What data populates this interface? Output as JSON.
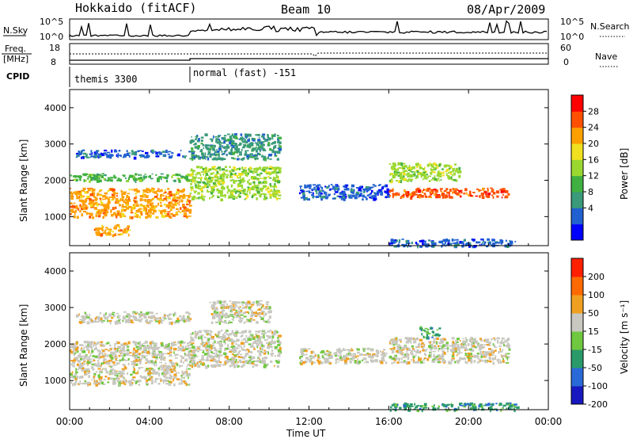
{
  "header": {
    "station": "Hokkaido (fitACF)",
    "beam": "Beam 10",
    "date": "08/Apr/2009"
  },
  "noise_panel": {
    "left_label": "N.Sky",
    "right_label": "N.Search",
    "left_ticks": [
      "10^5",
      "10^0"
    ],
    "right_ticks": [
      "10^5",
      "10^0"
    ]
  },
  "freq_panel": {
    "left_label_line1": "Freq.",
    "left_label_line2": "[MHz]",
    "right_label": "Nave",
    "left_ticks": [
      "18",
      "8"
    ],
    "right_ticks": [
      "60",
      "0"
    ]
  },
  "cpid_panel": {
    "label": "CPID",
    "segments": [
      {
        "text": "themis 3300",
        "start_hour": 0,
        "end_hour": 6.0
      },
      {
        "text": "normal (fast) -151",
        "start_hour": 6.0,
        "end_hour": 24
      }
    ]
  },
  "power_panel": {
    "ylabel": "Slant Range [km]",
    "yticks": [
      "4000",
      "3000",
      "2000",
      "1000"
    ],
    "colorbar_label": "Power [dB]",
    "colorbar_ticks": [
      "28",
      "24",
      "20",
      "16",
      "12",
      "8",
      "4"
    ],
    "colors": [
      "#0000ff",
      "#2060d0",
      "#3a9a7a",
      "#40b040",
      "#9ad830",
      "#f0e020",
      "#ffa000",
      "#ff5000",
      "#ff0000"
    ]
  },
  "velocity_panel": {
    "ylabel": "Slant Range [km]",
    "yticks": [
      "4000",
      "3000",
      "2000",
      "1000"
    ],
    "colorbar_label": "Velocity [m s⁻¹]",
    "colorbar_ticks": [
      "200",
      "100",
      "50",
      "15",
      "-15",
      "-50",
      "-100",
      "-200"
    ],
    "colors": [
      "#1818c0",
      "#2a6ad8",
      "#2a9a6a",
      "#70c840",
      "#c8c8c0",
      "#f0a020",
      "#ff6a00",
      "#ff2000"
    ]
  },
  "xaxis": {
    "label": "Time UT",
    "ticks": [
      "00:00",
      "04:00",
      "08:00",
      "12:00",
      "16:00",
      "20:00",
      "00:00"
    ]
  },
  "chart_data": [
    {
      "type": "heatmap",
      "title": "Power",
      "xlabel": "Time UT",
      "ylabel": "Slant Range [km]",
      "xlim": [
        0,
        24
      ],
      "ylim": [
        200,
        4500
      ],
      "colorbar": {
        "label": "Power [dB]",
        "range": [
          0,
          30
        ]
      },
      "bands": [
        {
          "start_hour": 0.0,
          "end_hour": 6.0,
          "range_km": [
            1000,
            1800
          ],
          "power_db": 22
        },
        {
          "start_hour": 0.0,
          "end_hour": 6.0,
          "range_km": [
            2000,
            2200
          ],
          "power_db": 12
        },
        {
          "start_hour": 0.3,
          "end_hour": 6.0,
          "range_km": [
            2650,
            2850
          ],
          "power_db": 6
        },
        {
          "start_hour": 1.2,
          "end_hour": 3.0,
          "range_km": [
            500,
            800
          ],
          "power_db": 20
        },
        {
          "start_hour": 6.0,
          "end_hour": 10.5,
          "range_km": [
            1500,
            2400
          ],
          "power_db": 16
        },
        {
          "start_hour": 6.0,
          "end_hour": 10.5,
          "range_km": [
            2600,
            3300
          ],
          "power_db": 8
        },
        {
          "start_hour": 11.5,
          "end_hour": 16.0,
          "range_km": [
            1500,
            1900
          ],
          "power_db": 6
        },
        {
          "start_hour": 16.0,
          "end_hour": 22.0,
          "range_km": [
            1550,
            1800
          ],
          "power_db": 26
        },
        {
          "start_hour": 16.0,
          "end_hour": 19.5,
          "range_km": [
            2000,
            2500
          ],
          "power_db": 14
        },
        {
          "start_hour": 16.0,
          "end_hour": 22.5,
          "range_km": [
            200,
            400
          ],
          "power_db": 4
        }
      ]
    },
    {
      "type": "heatmap",
      "title": "Velocity",
      "xlabel": "Time UT",
      "ylabel": "Slant Range [km]",
      "xlim": [
        0,
        24
      ],
      "ylim": [
        200,
        4500
      ],
      "colorbar": {
        "label": "Velocity [m s⁻¹]",
        "range": [
          -200,
          200
        ]
      },
      "bands": [
        {
          "start_hour": 0.0,
          "end_hour": 6.0,
          "range_km": [
            900,
            2100
          ],
          "velocity_ms": 0
        },
        {
          "start_hour": 0.3,
          "end_hour": 6.0,
          "range_km": [
            2600,
            2900
          ],
          "velocity_ms": 0
        },
        {
          "start_hour": 6.0,
          "end_hour": 10.5,
          "range_km": [
            1400,
            2400
          ],
          "velocity_ms": 0
        },
        {
          "start_hour": 7.0,
          "end_hour": 10.0,
          "range_km": [
            2600,
            3200
          ],
          "velocity_ms": 40
        },
        {
          "start_hour": 11.5,
          "end_hour": 16.0,
          "range_km": [
            1500,
            1900
          ],
          "velocity_ms": 0
        },
        {
          "start_hour": 16.0,
          "end_hour": 22.0,
          "range_km": [
            1500,
            2200
          ],
          "velocity_ms": 0
        },
        {
          "start_hour": 17.5,
          "end_hour": 18.5,
          "range_km": [
            2200,
            2500
          ],
          "velocity_ms": -60
        },
        {
          "start_hour": 16.0,
          "end_hour": 22.5,
          "range_km": [
            200,
            400
          ],
          "velocity_ms": -80
        }
      ]
    }
  ]
}
